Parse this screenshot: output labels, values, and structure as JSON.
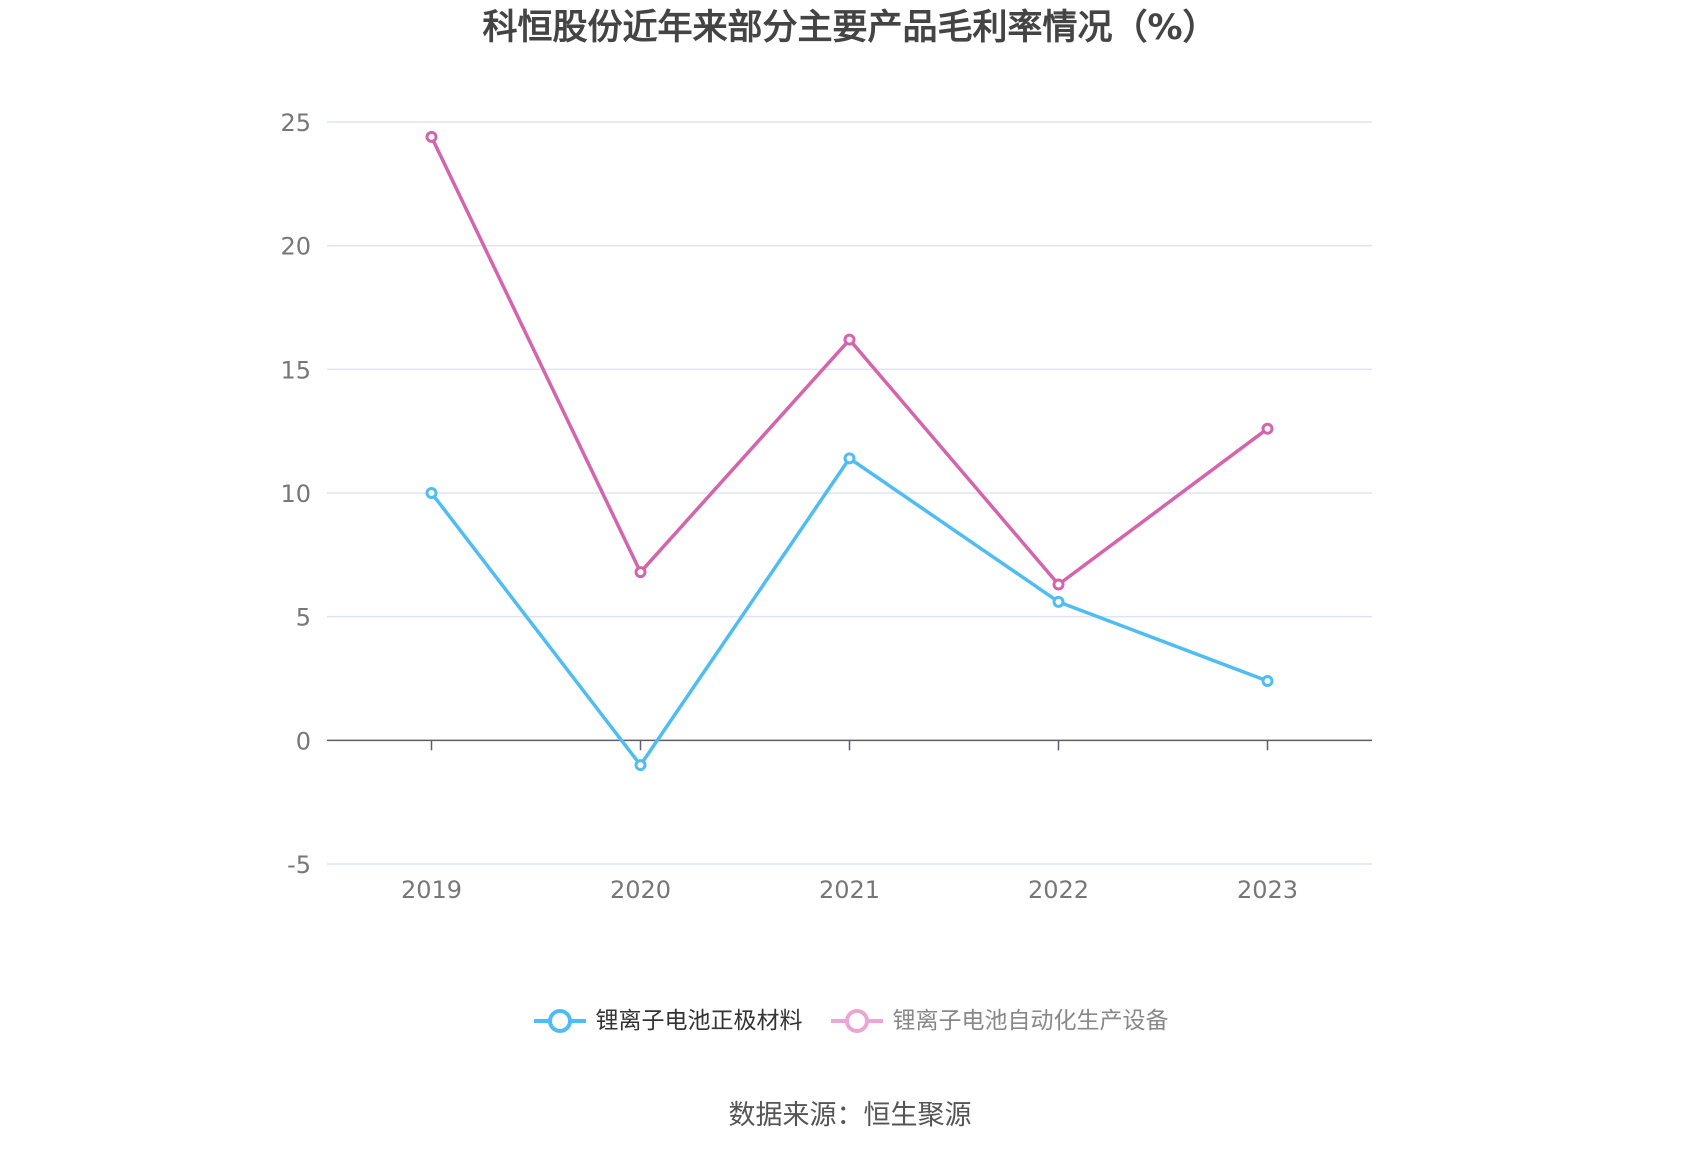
{
  "title": "科恒股份近年来部分主要产品毛利率情况（%）",
  "source_note": "数据来源：恒生聚源",
  "colors": {
    "series_1": "#4fbdf2",
    "series_2": "#d465ad",
    "series_2_legend": "#e9a7d6",
    "grid": "#dfe3f5",
    "zero_axis": "#5c5c6e",
    "tick_text": "#777777"
  },
  "chart_data": {
    "type": "line",
    "x": [
      "2019",
      "2020",
      "2021",
      "2022",
      "2023"
    ],
    "ylim": [
      -5,
      25
    ],
    "yticks": [
      25,
      20,
      15,
      10,
      5,
      0,
      -5
    ],
    "grid": true,
    "legend_position": "bottom-center",
    "series": [
      {
        "name": "锂离子电池正极材料",
        "values": [
          10.0,
          -1.0,
          11.4,
          5.6,
          2.4
        ]
      },
      {
        "name": "锂离子电池自动化生产设备",
        "values": [
          24.4,
          6.8,
          16.2,
          6.3,
          12.6
        ]
      }
    ]
  }
}
